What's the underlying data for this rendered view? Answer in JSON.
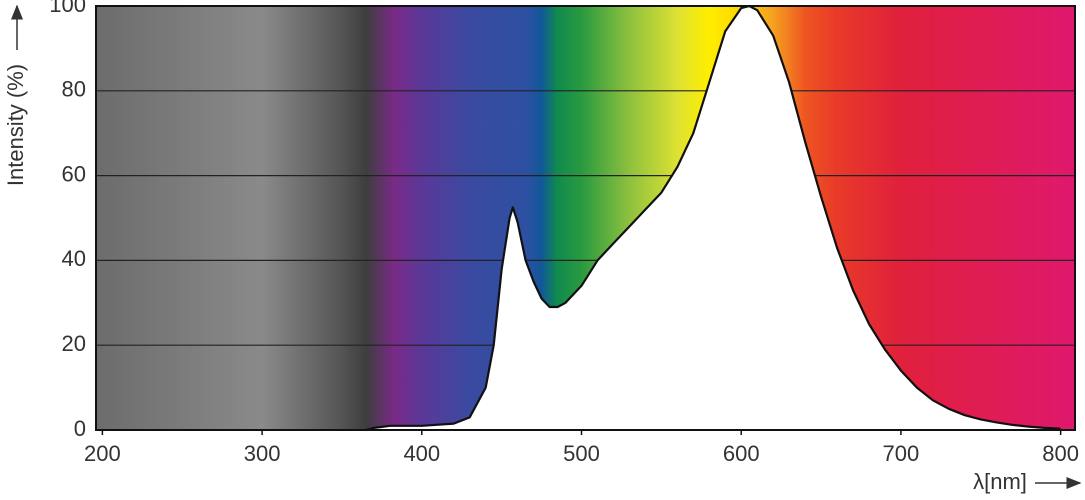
{
  "chart_data": {
    "type": "area",
    "x_label": "λ[nm]",
    "y_label": "Intensity (%)",
    "x": [
      365,
      370,
      380,
      400,
      420,
      430,
      440,
      445,
      450,
      455,
      457,
      460,
      465,
      470,
      475,
      480,
      485,
      490,
      500,
      510,
      520,
      530,
      540,
      550,
      560,
      570,
      580,
      590,
      600,
      605,
      610,
      620,
      630,
      640,
      650,
      660,
      670,
      680,
      690,
      700,
      710,
      720,
      730,
      740,
      750,
      760,
      770,
      780,
      790,
      800
    ],
    "values": [
      0,
      0.5,
      1,
      1,
      1.5,
      3,
      10,
      20,
      38,
      50,
      52.5,
      49,
      40,
      35,
      31,
      29,
      29,
      30,
      34,
      40,
      44,
      48,
      52,
      56,
      62,
      70,
      82,
      94,
      99.5,
      100,
      99,
      93,
      82,
      68,
      55,
      43,
      33,
      25,
      19,
      14,
      10,
      7,
      5,
      3.5,
      2.5,
      1.8,
      1.2,
      0.8,
      0.5,
      0.3
    ],
    "color": "#ffffff",
    "xlim": [
      196,
      809
    ],
    "xticks": [
      200,
      300,
      400,
      500,
      600,
      700,
      800
    ],
    "ylim": [
      0,
      100
    ],
    "yticks": [
      0,
      20,
      40,
      60,
      80,
      100
    ],
    "grid": true
  }
}
